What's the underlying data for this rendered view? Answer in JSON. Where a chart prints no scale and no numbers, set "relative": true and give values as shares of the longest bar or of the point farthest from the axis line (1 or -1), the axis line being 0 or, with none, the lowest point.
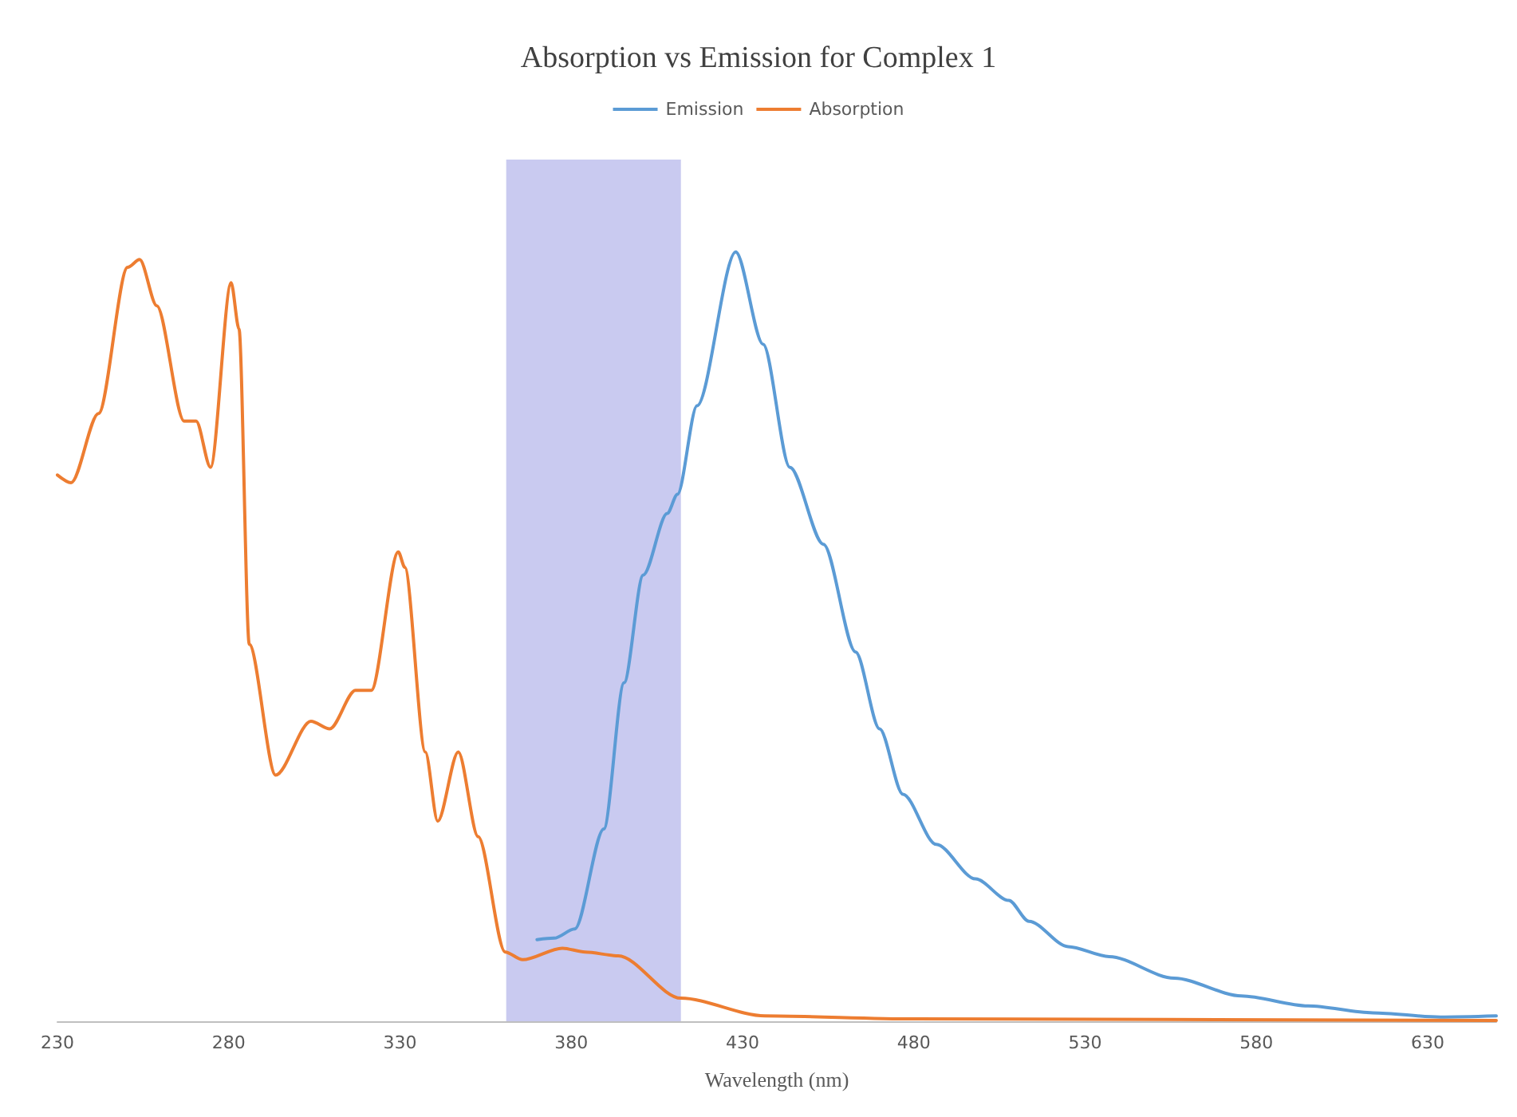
{
  "chart_data": {
    "type": "line",
    "title": "Absorption vs Emission for Complex 1",
    "xlabel": "Wavelength (nm)",
    "relative": true,
    "legend": "top",
    "xlim": [
      230,
      650
    ],
    "xticks": [
      230,
      280,
      330,
      380,
      430,
      480,
      530,
      580,
      630
    ],
    "bands": [
      {
        "axis": "x",
        "from": 361,
        "to": 412,
        "color": "#c9caf0"
      }
    ],
    "series": [
      {
        "name": "Emission",
        "color": "#5b9bd5",
        "x": [
          370,
          375,
          381,
          389.5,
          395.4,
          401,
          408,
          411,
          416.7,
          428,
          436,
          443.8,
          453.6,
          463,
          470,
          476.8,
          486.5,
          498,
          507.7,
          513.6,
          525,
          537,
          556,
          575.6,
          595,
          614,
          633.7,
          650
        ],
        "values": [
          0.106,
          0.108,
          0.12,
          0.25,
          0.44,
          0.58,
          0.66,
          0.685,
          0.8,
          1,
          0.88,
          0.72,
          0.62,
          0.48,
          0.38,
          0.295,
          0.23,
          0.185,
          0.157,
          0.13,
          0.097,
          0.084,
          0.056,
          0.033,
          0.02,
          0.011,
          0.0055,
          0.007
        ]
      },
      {
        "name": "Absorption",
        "color": "#ed7d31",
        "x": [
          230,
          234,
          242,
          250.5,
          254,
          259,
          267,
          270.5,
          274.7,
          280.7,
          283,
          286,
          293.7,
          304,
          309.5,
          317,
          321.6,
          329.5,
          331.4,
          337.4,
          341,
          347,
          352.8,
          360.7,
          365.8,
          377.4,
          384,
          393.7,
          412,
          436.5,
          480,
          650
        ],
        "values": [
          0.71,
          0.7,
          0.79,
          0.98,
          0.99,
          0.93,
          0.78,
          0.78,
          0.72,
          0.96,
          0.9,
          0.49,
          0.32,
          0.39,
          0.38,
          0.43,
          0.43,
          0.61,
          0.59,
          0.35,
          0.26,
          0.35,
          0.24,
          0.09,
          0.08,
          0.095,
          0.09,
          0.085,
          0.03,
          0.007,
          0.003,
          0.001
        ]
      }
    ]
  }
}
